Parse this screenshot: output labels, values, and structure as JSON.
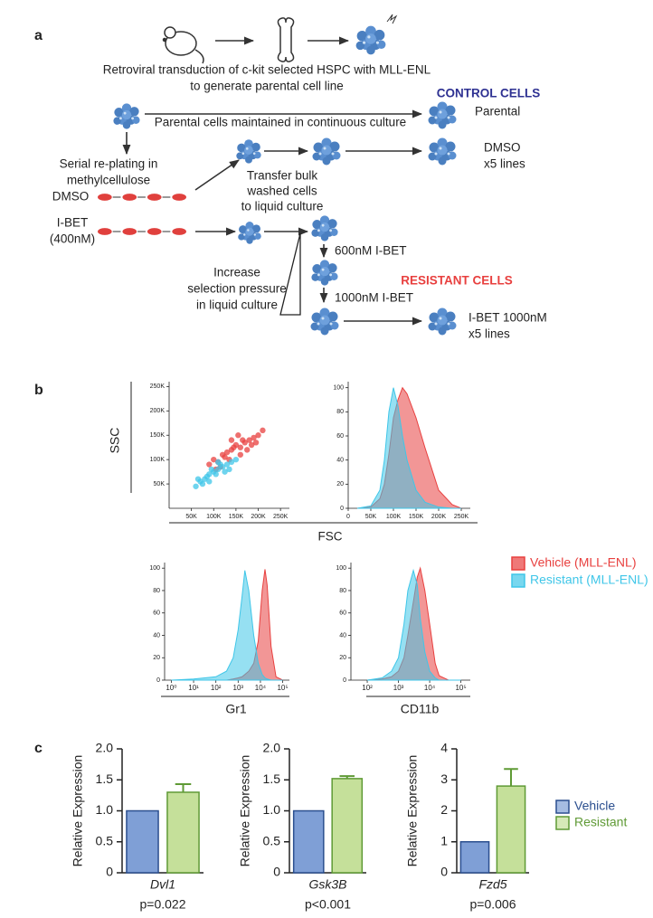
{
  "panel_labels": [
    "a",
    "b",
    "c"
  ],
  "diagram": {
    "caption_line1": "Retroviral transduction of c-kit selected HSPC with MLL-ENL",
    "caption_line2": "to generate parental cell line",
    "control_heading": "CONTROL CELLS",
    "parental_step": "Parental cells maintained in continuous culture",
    "parental_label": "Parental",
    "replating_line1": "Serial re-plating in",
    "replating_line2": "methylcellulose",
    "transfer_line1": "Transfer bulk",
    "transfer_line2": "washed cells",
    "transfer_line3": "to liquid culture",
    "dmso_left": "DMSO",
    "ibet_left_line1": "I-BET",
    "ibet_left_line2": "(400nM)",
    "dmso_right_line1": "DMSO",
    "dmso_right_line2": "x5 lines",
    "step_600": "600nM I-BET",
    "step_1000": "1000nM I-BET",
    "resistant_heading": "RESISTANT CELLS",
    "increase_line1": "Increase",
    "increase_line2": "selection pressure",
    "increase_line3": "in liquid culture",
    "ibet_right_line1": "I-BET 1000nM",
    "ibet_right_line2": "x5 lines"
  },
  "shared_labels": {
    "fsc": "FSC"
  },
  "chart_data": [
    {
      "type": "scatter",
      "y_label": "SSC",
      "xlim": [
        0,
        270000
      ],
      "ylim": [
        0,
        260000
      ],
      "xticks": [
        {
          "value": 50000,
          "label": "50K"
        },
        {
          "value": 100000,
          "label": "100K"
        },
        {
          "value": 150000,
          "label": "150K"
        },
        {
          "value": 200000,
          "label": "200K"
        },
        {
          "value": 250000,
          "label": "250K"
        }
      ],
      "yticks": [
        {
          "value": 50000,
          "label": "50K"
        },
        {
          "value": 100000,
          "label": "100K"
        },
        {
          "value": 150000,
          "label": "150K"
        },
        {
          "value": 200000,
          "label": "200K"
        },
        {
          "value": 250000,
          "label": "250K"
        }
      ],
      "series": [
        {
          "color": "#e8403f",
          "x": [
            90000,
            100000,
            110000,
            120000,
            130000,
            140000,
            150000,
            160000,
            170000,
            180000,
            190000,
            200000,
            210000,
            125000,
            145000,
            165000,
            185000,
            135000,
            155000,
            175000,
            115000,
            195000,
            105000,
            160000,
            140000
          ],
          "values": [
            90000,
            100000,
            95000,
            110000,
            115000,
            120000,
            130000,
            125000,
            135000,
            140000,
            145000,
            150000,
            160000,
            105000,
            125000,
            140000,
            130000,
            100000,
            150000,
            120000,
            85000,
            135000,
            80000,
            110000,
            140000
          ]
        },
        {
          "color": "#3fc6e8",
          "x": [
            60000,
            70000,
            80000,
            90000,
            100000,
            110000,
            120000,
            130000,
            140000,
            150000,
            75000,
            85000,
            95000,
            105000,
            115000,
            125000,
            65000,
            135000,
            90000,
            110000
          ],
          "values": [
            45000,
            55000,
            60000,
            70000,
            75000,
            80000,
            85000,
            90000,
            95000,
            100000,
            50000,
            65000,
            80000,
            70000,
            90000,
            75000,
            60000,
            80000,
            55000,
            95000
          ]
        }
      ]
    },
    {
      "type": "area",
      "xlim": [
        0,
        270000
      ],
      "ylim": [
        0,
        105
      ],
      "xticks": [
        0,
        {
          "value": 50000,
          "label": "50K"
        },
        {
          "value": 100000,
          "label": "100K"
        },
        {
          "value": 150000,
          "label": "150K"
        },
        {
          "value": 200000,
          "label": "200K"
        },
        {
          "value": 250000,
          "label": "250K"
        }
      ],
      "yticks": [
        0,
        20,
        40,
        60,
        80,
        100
      ],
      "x": [
        20000,
        50000,
        70000,
        80000,
        90000,
        100000,
        110000,
        120000,
        130000,
        150000,
        170000,
        200000,
        230000,
        250000
      ],
      "series": [
        {
          "name": "Vehicle (MLL-ENL)",
          "color": "#e8403f",
          "values": [
            0,
            1,
            8,
            20,
            45,
            75,
            90,
            100,
            95,
            75,
            50,
            15,
            3,
            0
          ]
        },
        {
          "name": "Resistant (MLL-ENL)",
          "color": "#3fc6e8",
          "values": [
            0,
            2,
            15,
            40,
            80,
            100,
            85,
            60,
            40,
            15,
            5,
            1,
            0,
            0
          ]
        }
      ]
    },
    {
      "type": "area",
      "x_label": "Gr1",
      "xscale": "log",
      "xlim": [
        0.5,
        200000
      ],
      "ylim": [
        0,
        105
      ],
      "xticks": [
        {
          "value": 1,
          "label": "10⁰"
        },
        {
          "value": 10,
          "label": "10¹"
        },
        {
          "value": 100,
          "label": "10²"
        },
        {
          "value": 1000,
          "label": "10³"
        },
        {
          "value": 10000,
          "label": "10⁴"
        },
        {
          "value": 100000,
          "label": "10⁵"
        }
      ],
      "yticks": [
        0,
        20,
        40,
        60,
        80,
        100
      ],
      "x": [
        1,
        10,
        100,
        300,
        600,
        1000,
        1500,
        2000,
        3000,
        5000,
        8000,
        12000,
        16000,
        20000,
        30000,
        50000,
        100000
      ],
      "series": [
        {
          "color": "#e8403f",
          "values": [
            0,
            0,
            0,
            0,
            1,
            2,
            3,
            5,
            8,
            15,
            35,
            80,
            99,
            85,
            30,
            3,
            0
          ]
        },
        {
          "color": "#3fc6e8",
          "values": [
            0,
            1,
            3,
            8,
            20,
            45,
            75,
            98,
            80,
            40,
            15,
            5,
            2,
            1,
            0,
            0,
            0
          ]
        }
      ]
    },
    {
      "type": "area",
      "x_label": "CD11b",
      "xscale": "log",
      "xlim": [
        30,
        200000
      ],
      "ylim": [
        0,
        105
      ],
      "xticks": [
        {
          "value": 100,
          "label": "10²"
        },
        {
          "value": 1000,
          "label": "10³"
        },
        {
          "value": 10000,
          "label": "10⁴"
        },
        {
          "value": 100000,
          "label": "10⁵"
        }
      ],
      "yticks": [
        0,
        20,
        40,
        60,
        80,
        100
      ],
      "x": [
        100,
        300,
        600,
        1000,
        1500,
        2000,
        3000,
        4000,
        5000,
        7000,
        10000,
        15000,
        20000,
        40000,
        100000
      ],
      "series": [
        {
          "color": "#e8403f",
          "values": [
            0,
            1,
            3,
            8,
            20,
            40,
            70,
            92,
            100,
            80,
            50,
            15,
            4,
            0,
            0
          ]
        },
        {
          "color": "#3fc6e8",
          "values": [
            0,
            2,
            8,
            20,
            50,
            80,
            98,
            85,
            55,
            25,
            8,
            2,
            0,
            0,
            0
          ]
        }
      ]
    },
    {
      "type": "bar",
      "x_label": "Dvl1",
      "y_label": "Relative Expression",
      "annotation": "p=0.022",
      "ylim": [
        0,
        2
      ],
      "yticks": [
        0,
        0.5,
        {
          "value": 1,
          "label": "1.0"
        },
        1.5,
        {
          "value": 2,
          "label": "2.0"
        }
      ],
      "series": [
        {
          "color": "#7f9fd6",
          "values": [
            1.0
          ]
        },
        {
          "color": "#c5e09a",
          "values": [
            1.3
          ],
          "errors": [
            0.13
          ]
        }
      ]
    },
    {
      "type": "bar",
      "x_label": "Gsk3B",
      "y_label": "Relative Expression",
      "annotation": "p<0.001",
      "ylim": [
        0,
        2
      ],
      "yticks": [
        0,
        0.5,
        {
          "value": 1,
          "label": "1.0"
        },
        1.5,
        {
          "value": 2,
          "label": "2.0"
        }
      ],
      "series": [
        {
          "color": "#7f9fd6",
          "values": [
            1.0
          ]
        },
        {
          "color": "#c5e09a",
          "values": [
            1.52
          ],
          "errors": [
            0.04
          ]
        }
      ]
    },
    {
      "type": "bar",
      "x_label": "Fzd5",
      "y_label": "Relative Expression",
      "annotation": "p=0.006",
      "ylim": [
        0,
        4
      ],
      "yticks": [
        0,
        1,
        2,
        3,
        4
      ],
      "series": [
        {
          "name": "Vehicle",
          "color": "#7f9fd6",
          "values": [
            1.0
          ]
        },
        {
          "name": "Resistant",
          "color": "#c5e09a",
          "values": [
            2.8
          ],
          "errors": [
            0.55
          ]
        }
      ]
    }
  ]
}
